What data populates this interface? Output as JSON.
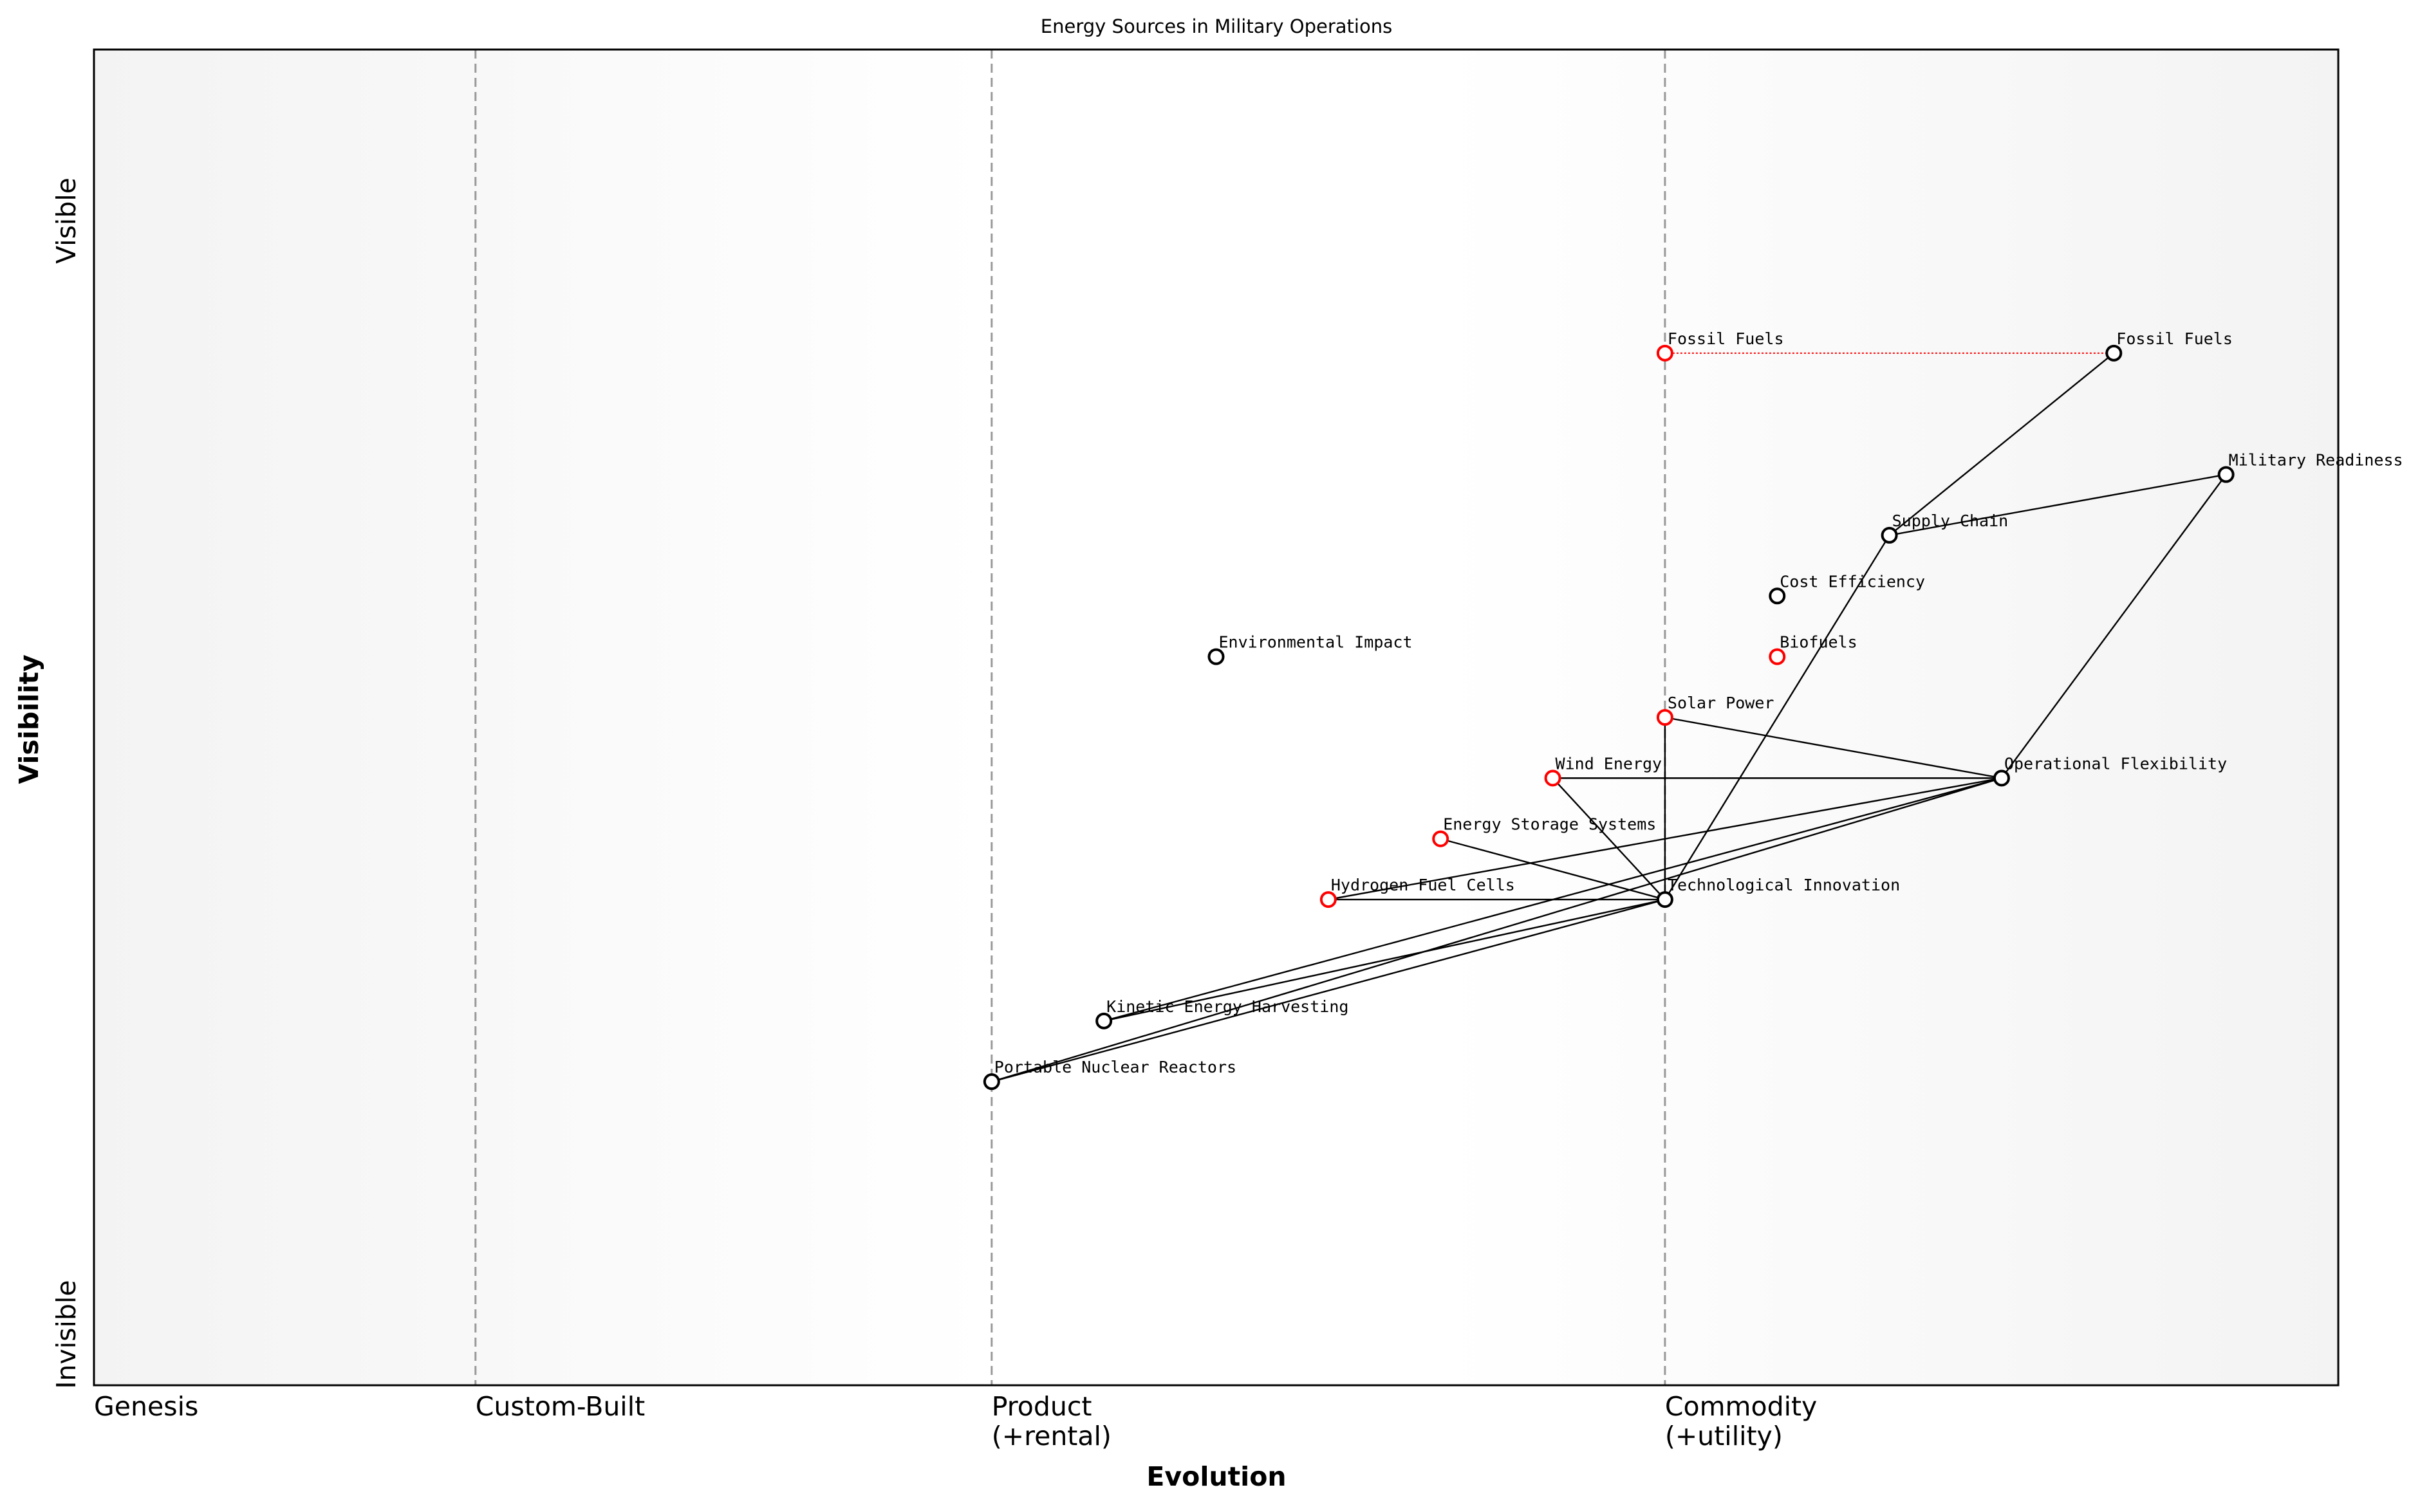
{
  "title": "Energy Sources in Military Operations",
  "axes": {
    "x_label": "Evolution",
    "y_label": "Visibility",
    "y_top": "Visible",
    "y_bottom": "Invisible",
    "xlim": [
      0,
      1
    ],
    "ylim": [
      -0.05,
      1.05
    ]
  },
  "stages": [
    {
      "label": "Genesis",
      "value": 0
    },
    {
      "label": "Custom-Built",
      "value": 0.17
    },
    {
      "label": "Product\n(+rental)",
      "value": 0.4
    },
    {
      "label": "Commodity\n(+utility)",
      "value": 0.7
    }
  ],
  "nodes": [
    {
      "name": "Fossil Fuels",
      "evolution": 0.9,
      "visibility": 0.8,
      "color": "black"
    },
    {
      "name": "Military Readiness",
      "evolution": 0.95,
      "visibility": 0.7,
      "color": "black"
    },
    {
      "name": "Supply Chain",
      "evolution": 0.8,
      "visibility": 0.65,
      "color": "black"
    },
    {
      "name": "Cost Efficiency",
      "evolution": 0.75,
      "visibility": 0.6,
      "color": "black"
    },
    {
      "name": "Biofuels",
      "evolution": 0.75,
      "visibility": 0.55,
      "color": "red"
    },
    {
      "name": "Environmental Impact",
      "evolution": 0.5,
      "visibility": 0.55,
      "color": "black"
    },
    {
      "name": "Solar Power",
      "evolution": 0.7,
      "visibility": 0.5,
      "color": "red"
    },
    {
      "name": "Operational Flexibility",
      "evolution": 0.85,
      "visibility": 0.45,
      "color": "black"
    },
    {
      "name": "Wind Energy",
      "evolution": 0.65,
      "visibility": 0.45,
      "color": "red"
    },
    {
      "name": "Energy Storage Systems",
      "evolution": 0.6,
      "visibility": 0.4,
      "color": "red"
    },
    {
      "name": "Hydrogen Fuel Cells",
      "evolution": 0.55,
      "visibility": 0.35,
      "color": "red"
    },
    {
      "name": "Technological Innovation",
      "evolution": 0.7,
      "visibility": 0.35,
      "color": "black"
    },
    {
      "name": "Kinetic Energy Harvesting",
      "evolution": 0.45,
      "visibility": 0.25,
      "color": "black"
    },
    {
      "name": "Portable Nuclear Reactors",
      "evolution": 0.4,
      "visibility": 0.2,
      "color": "black"
    }
  ],
  "links": [
    [
      "Fossil Fuels",
      "Supply Chain"
    ],
    [
      "Military Readiness",
      "Supply Chain"
    ],
    [
      "Military Readiness",
      "Operational Flexibility"
    ],
    [
      "Supply Chain",
      "Technological Innovation"
    ],
    [
      "Solar Power",
      "Operational Flexibility"
    ],
    [
      "Solar Power",
      "Technological Innovation"
    ],
    [
      "Wind Energy",
      "Operational Flexibility"
    ],
    [
      "Wind Energy",
      "Technological Innovation"
    ],
    [
      "Energy Storage Systems",
      "Technological Innovation"
    ],
    [
      "Hydrogen Fuel Cells",
      "Technological Innovation"
    ],
    [
      "Hydrogen Fuel Cells",
      "Operational Flexibility"
    ],
    [
      "Kinetic Energy Harvesting",
      "Operational Flexibility"
    ],
    [
      "Kinetic Energy Harvesting",
      "Technological Innovation"
    ],
    [
      "Portable Nuclear Reactors",
      "Operational Flexibility"
    ],
    [
      "Portable Nuclear Reactors",
      "Technological Innovation"
    ]
  ],
  "evolve": {
    "name": "Fossil Fuels",
    "from": 0.7,
    "to": 0.9,
    "visibility": 0.8,
    "color": "red"
  }
}
